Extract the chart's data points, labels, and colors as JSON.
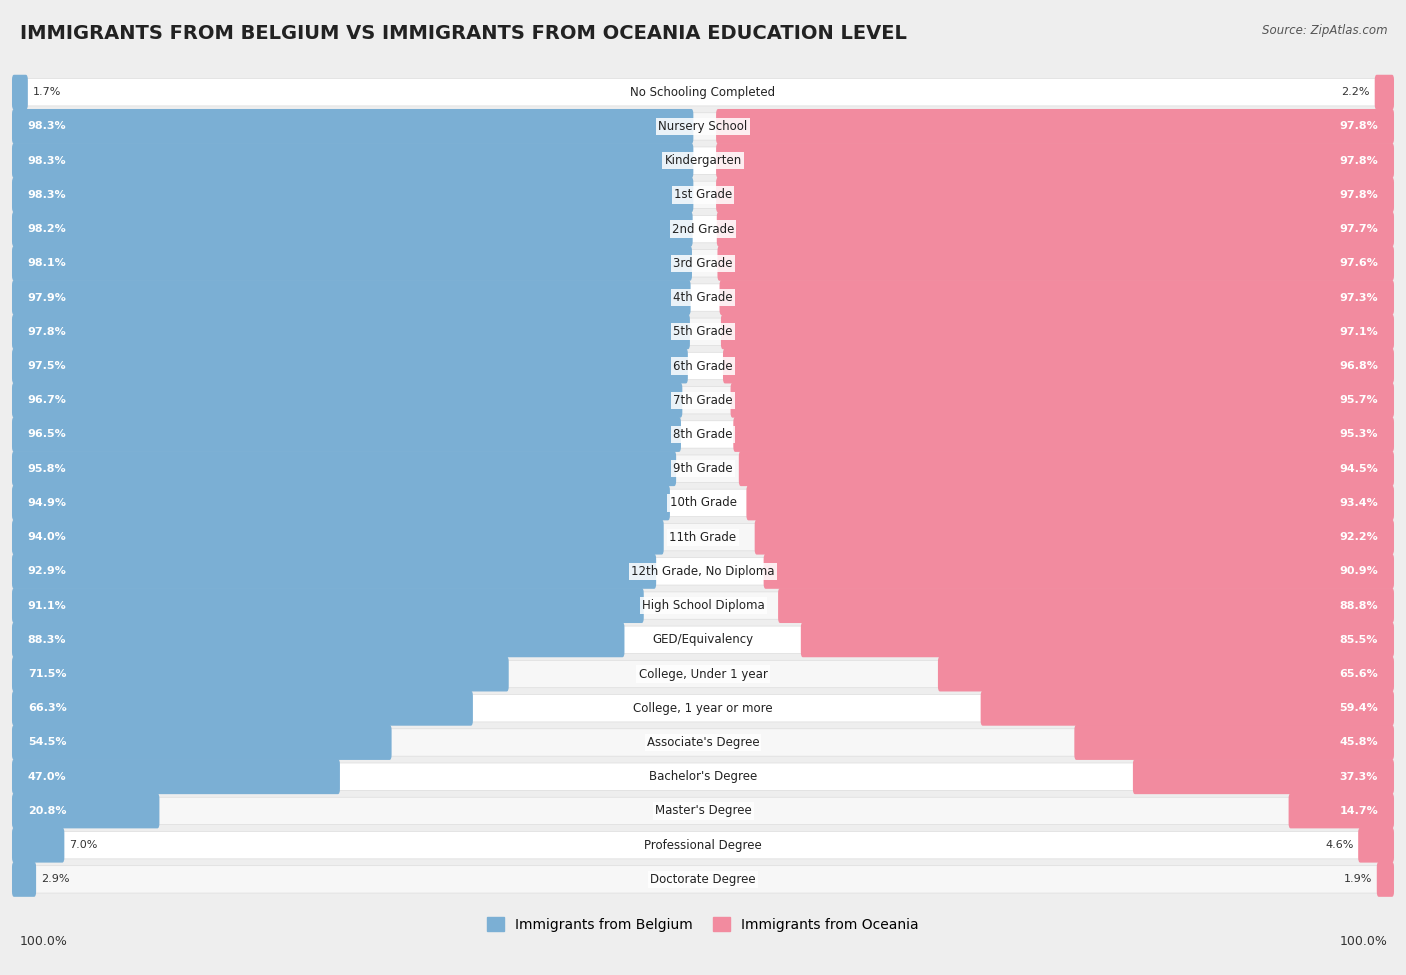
{
  "title": "IMMIGRANTS FROM BELGIUM VS IMMIGRANTS FROM OCEANIA EDUCATION LEVEL",
  "source": "Source: ZipAtlas.com",
  "categories": [
    "No Schooling Completed",
    "Nursery School",
    "Kindergarten",
    "1st Grade",
    "2nd Grade",
    "3rd Grade",
    "4th Grade",
    "5th Grade",
    "6th Grade",
    "7th Grade",
    "8th Grade",
    "9th Grade",
    "10th Grade",
    "11th Grade",
    "12th Grade, No Diploma",
    "High School Diploma",
    "GED/Equivalency",
    "College, Under 1 year",
    "College, 1 year or more",
    "Associate's Degree",
    "Bachelor's Degree",
    "Master's Degree",
    "Professional Degree",
    "Doctorate Degree"
  ],
  "belgium": [
    1.7,
    98.3,
    98.3,
    98.3,
    98.2,
    98.1,
    97.9,
    97.8,
    97.5,
    96.7,
    96.5,
    95.8,
    94.9,
    94.0,
    92.9,
    91.1,
    88.3,
    71.5,
    66.3,
    54.5,
    47.0,
    20.8,
    7.0,
    2.9
  ],
  "oceania": [
    2.2,
    97.8,
    97.8,
    97.8,
    97.7,
    97.6,
    97.3,
    97.1,
    96.8,
    95.7,
    95.3,
    94.5,
    93.4,
    92.2,
    90.9,
    88.8,
    85.5,
    65.6,
    59.4,
    45.8,
    37.3,
    14.7,
    4.6,
    1.9
  ],
  "belgium_color": "#7bafd4",
  "oceania_color": "#f28b9f",
  "background_color": "#eeeeee",
  "row_color_odd": "#ffffff",
  "row_color_even": "#f7f7f7",
  "title_fontsize": 14,
  "label_fontsize": 8.5,
  "pct_fontsize": 8,
  "legend_fontsize": 10
}
